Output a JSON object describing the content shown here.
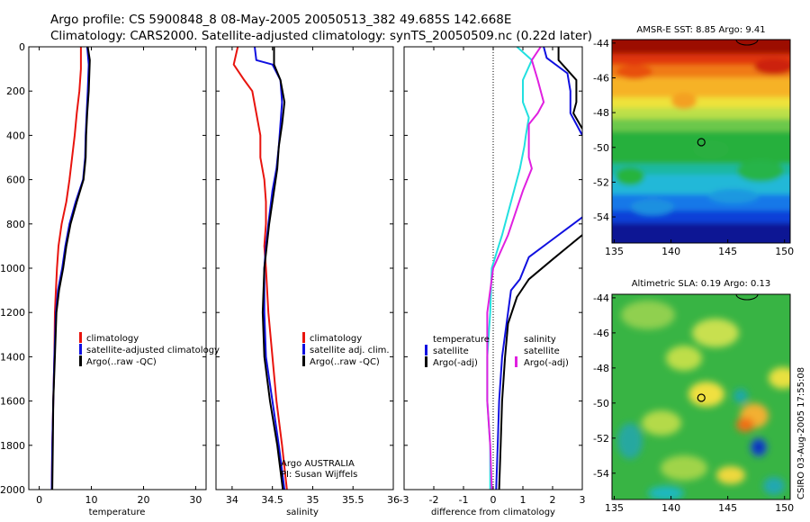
{
  "header": {
    "title_line1": "Argo profile: CS 5900848_8 08-May-2005 20050513_382 49.685S 142.668E",
    "title_line2": "Climatology: CARS2000. Satellite-adjusted climatology: synTS_20050509.nc (0.22d later)"
  },
  "side_label": "CSIRO 03-Aug-2005 17:55:08",
  "colors": {
    "climatology": "#e8140e",
    "satellite": "#1010e0",
    "argo": "#000000",
    "temperature_diff": "#22e0e0",
    "salinity_diff": "#e020e0"
  },
  "chart_data": [
    {
      "type": "line",
      "id": "temperature",
      "xlabel": "temperature",
      "xlim": [
        -2,
        32
      ],
      "ylim": [
        2000,
        0
      ],
      "xticks": [
        0,
        10,
        20,
        30
      ],
      "yticks": [
        0,
        200,
        400,
        600,
        800,
        1000,
        1200,
        1400,
        1600,
        1800,
        2000
      ],
      "legend": [
        "climatology",
        "satellite-adjusted climatology",
        "Argo(..raw -QC)"
      ],
      "series": [
        {
          "name": "climatology",
          "color": "#e8140e",
          "points": [
            [
              8.0,
              0
            ],
            [
              8.0,
              100
            ],
            [
              7.7,
              200
            ],
            [
              7.2,
              300
            ],
            [
              6.8,
              400
            ],
            [
              6.3,
              500
            ],
            [
              5.8,
              600
            ],
            [
              5.2,
              700
            ],
            [
              4.3,
              800
            ],
            [
              3.7,
              900
            ],
            [
              3.4,
              1000
            ],
            [
              3.2,
              1100
            ],
            [
              3.0,
              1200
            ],
            [
              2.9,
              1400
            ],
            [
              2.7,
              1600
            ],
            [
              2.5,
              1800
            ],
            [
              2.4,
              2000
            ]
          ]
        },
        {
          "name": "satellite-adjusted climatology",
          "color": "#1010e0",
          "points": [
            [
              9.2,
              0
            ],
            [
              9.5,
              80
            ],
            [
              9.3,
              200
            ],
            [
              9.1,
              300
            ],
            [
              8.9,
              400
            ],
            [
              8.8,
              500
            ],
            [
              8.4,
              600
            ],
            [
              7.0,
              700
            ],
            [
              5.8,
              800
            ],
            [
              5.0,
              900
            ],
            [
              4.4,
              1000
            ],
            [
              3.6,
              1100
            ],
            [
              3.2,
              1200
            ],
            [
              2.9,
              1400
            ],
            [
              2.7,
              1600
            ],
            [
              2.5,
              1800
            ],
            [
              2.4,
              2000
            ]
          ]
        },
        {
          "name": "Argo(..raw -QC)",
          "color": "#000000",
          "points": [
            [
              9.3,
              0
            ],
            [
              9.7,
              60
            ],
            [
              9.5,
              200
            ],
            [
              9.2,
              300
            ],
            [
              9.0,
              400
            ],
            [
              8.9,
              500
            ],
            [
              8.5,
              600
            ],
            [
              7.2,
              700
            ],
            [
              6.0,
              800
            ],
            [
              5.2,
              900
            ],
            [
              4.6,
              1000
            ],
            [
              3.8,
              1100
            ],
            [
              3.3,
              1200
            ],
            [
              3.0,
              1400
            ],
            [
              2.7,
              1600
            ],
            [
              2.6,
              1800
            ],
            [
              2.5,
              2000
            ]
          ]
        }
      ]
    },
    {
      "type": "line",
      "id": "salinity",
      "xlabel": "salinity",
      "xlim": [
        33.8,
        36.0
      ],
      "ylim": [
        2000,
        0
      ],
      "xticks": [
        34,
        34.5,
        35,
        35.5,
        36
      ],
      "yticks": [
        0,
        200,
        400,
        600,
        800,
        1000,
        1200,
        1400,
        1600,
        1800,
        2000
      ],
      "legend": [
        "climatology",
        "satellite adj. clim.",
        "Argo(..raw -QC)"
      ],
      "annotation": [
        "Argo AUSTRALIA",
        "PI: Susan Wijffels"
      ],
      "series": [
        {
          "name": "climatology",
          "color": "#e8140e",
          "points": [
            [
              34.07,
              0
            ],
            [
              34.02,
              80
            ],
            [
              34.15,
              150
            ],
            [
              34.25,
              200
            ],
            [
              34.3,
              300
            ],
            [
              34.35,
              400
            ],
            [
              34.35,
              500
            ],
            [
              34.4,
              600
            ],
            [
              34.42,
              700
            ],
            [
              34.42,
              800
            ],
            [
              34.4,
              900
            ],
            [
              34.42,
              1000
            ],
            [
              34.45,
              1200
            ],
            [
              34.5,
              1400
            ],
            [
              34.55,
              1600
            ],
            [
              34.62,
              1800
            ],
            [
              34.68,
              2000
            ]
          ]
        },
        {
          "name": "satellite adj. clim.",
          "color": "#1010e0",
          "points": [
            [
              34.28,
              0
            ],
            [
              34.3,
              60
            ],
            [
              34.5,
              80
            ],
            [
              34.6,
              150
            ],
            [
              34.62,
              250
            ],
            [
              34.6,
              350
            ],
            [
              34.58,
              450
            ],
            [
              34.55,
              550
            ],
            [
              34.5,
              650
            ],
            [
              34.45,
              800
            ],
            [
              34.42,
              900
            ],
            [
              34.4,
              1000
            ],
            [
              34.4,
              1200
            ],
            [
              34.42,
              1400
            ],
            [
              34.5,
              1600
            ],
            [
              34.58,
              1800
            ],
            [
              34.65,
              2000
            ]
          ]
        },
        {
          "name": "Argo(..raw -QC)",
          "color": "#000000",
          "points": [
            [
              34.52,
              0
            ],
            [
              34.52,
              80
            ],
            [
              34.6,
              150
            ],
            [
              34.65,
              250
            ],
            [
              34.62,
              350
            ],
            [
              34.58,
              450
            ],
            [
              34.56,
              550
            ],
            [
              34.52,
              650
            ],
            [
              34.46,
              800
            ],
            [
              34.43,
              900
            ],
            [
              34.4,
              1000
            ],
            [
              34.38,
              1200
            ],
            [
              34.4,
              1400
            ],
            [
              34.47,
              1600
            ],
            [
              34.56,
              1800
            ],
            [
              34.63,
              2000
            ]
          ]
        }
      ]
    },
    {
      "type": "line",
      "id": "difference",
      "xlabel": "difference from climatology",
      "xlim": [
        -3,
        3
      ],
      "ylim": [
        2000,
        0
      ],
      "xticks": [
        -3,
        -2,
        -1,
        0,
        1,
        2,
        3
      ],
      "yticks": [
        0,
        200,
        400,
        600,
        800,
        1000,
        1200,
        1400,
        1600,
        1800,
        2000
      ],
      "legend_temperature": [
        "temperature",
        "satellite",
        "Argo(-adj)"
      ],
      "legend_salinity": [
        "salinity",
        "satellite",
        "Argo(-adj)"
      ],
      "zero_line": true,
      "series": [
        {
          "name": "temperature satellite",
          "color": "#1010e0",
          "points": [
            [
              3.0,
              770
            ],
            [
              2.0,
              870
            ],
            [
              1.2,
              950
            ],
            [
              0.9,
              1050
            ],
            [
              0.6,
              1100
            ],
            [
              0.5,
              1200
            ],
            [
              0.3,
              1400
            ],
            [
              0.2,
              1600
            ],
            [
              0.15,
              1800
            ],
            [
              0.1,
              2000
            ]
          ]
        },
        {
          "name": "temperature Argo(-adj)",
          "color": "#000000",
          "points": [
            [
              3.0,
              850
            ],
            [
              2.0,
              960
            ],
            [
              1.2,
              1050
            ],
            [
              0.8,
              1130
            ],
            [
              0.5,
              1250
            ],
            [
              0.4,
              1400
            ],
            [
              0.3,
              1600
            ],
            [
              0.25,
              1800
            ],
            [
              0.2,
              2000
            ]
          ]
        },
        {
          "name": "salinity satellite",
          "color": "#1010e0",
          "points": [
            [
              1.7,
              0
            ],
            [
              1.8,
              50
            ],
            [
              2.5,
              120
            ],
            [
              2.6,
              200
            ],
            [
              2.6,
              300
            ],
            [
              3.0,
              400
            ]
          ]
        },
        {
          "name": "salinity Argo(-adj)",
          "color": "#000000",
          "points": [
            [
              2.2,
              0
            ],
            [
              2.2,
              60
            ],
            [
              2.8,
              150
            ],
            [
              2.8,
              250
            ],
            [
              2.7,
              300
            ],
            [
              3.0,
              370
            ]
          ]
        },
        {
          "name": "temperature Argo diff",
          "color": "#22e0e0",
          "points": [
            [
              0.8,
              0
            ],
            [
              1.3,
              60
            ],
            [
              1.0,
              150
            ],
            [
              1.0,
              250
            ],
            [
              1.2,
              320
            ],
            [
              1.1,
              400
            ],
            [
              1.05,
              450
            ],
            [
              0.9,
              550
            ],
            [
              0.6,
              700
            ],
            [
              0.3,
              850
            ],
            [
              -0.05,
              1000
            ],
            [
              -0.1,
              1200
            ],
            [
              -0.2,
              1400
            ],
            [
              -0.2,
              1600
            ],
            [
              -0.1,
              1800
            ],
            [
              -0.1,
              2000
            ]
          ]
        },
        {
          "name": "salinity Argo diff",
          "color": "#e020e0",
          "points": [
            [
              1.6,
              0
            ],
            [
              1.3,
              60
            ],
            [
              1.5,
              150
            ],
            [
              1.7,
              250
            ],
            [
              1.5,
              300
            ],
            [
              1.2,
              350
            ],
            [
              1.2,
              500
            ],
            [
              1.3,
              550
            ],
            [
              1.0,
              650
            ],
            [
              0.5,
              850
            ],
            [
              0.0,
              1000
            ],
            [
              -0.2,
              1200
            ],
            [
              -0.2,
              1400
            ],
            [
              -0.2,
              1600
            ],
            [
              -0.1,
              1800
            ],
            [
              -0.05,
              2000
            ]
          ]
        }
      ]
    },
    {
      "type": "heatmap",
      "id": "sst_map",
      "title": "AMSR-E SST: 8.85 Argo: 9.41",
      "xlim": [
        134.8,
        150.5
      ],
      "ylim": [
        -55.5,
        -43.8
      ],
      "xticks": [
        135,
        140,
        145,
        150
      ],
      "yticks": [
        -44,
        -46,
        -48,
        -50,
        -52,
        -54
      ],
      "profile_marker": [
        142.67,
        -49.7
      ]
    },
    {
      "type": "heatmap",
      "id": "sla_map",
      "title": "Altimetric SLA: 0.19 Argo: 0.13",
      "xlim": [
        134.8,
        150.5
      ],
      "ylim": [
        -55.5,
        -43.8
      ],
      "xticks": [
        135,
        140,
        145,
        150
      ],
      "yticks": [
        -44,
        -46,
        -48,
        -50,
        -52,
        -54
      ],
      "profile_marker": [
        142.67,
        -49.7
      ]
    }
  ]
}
